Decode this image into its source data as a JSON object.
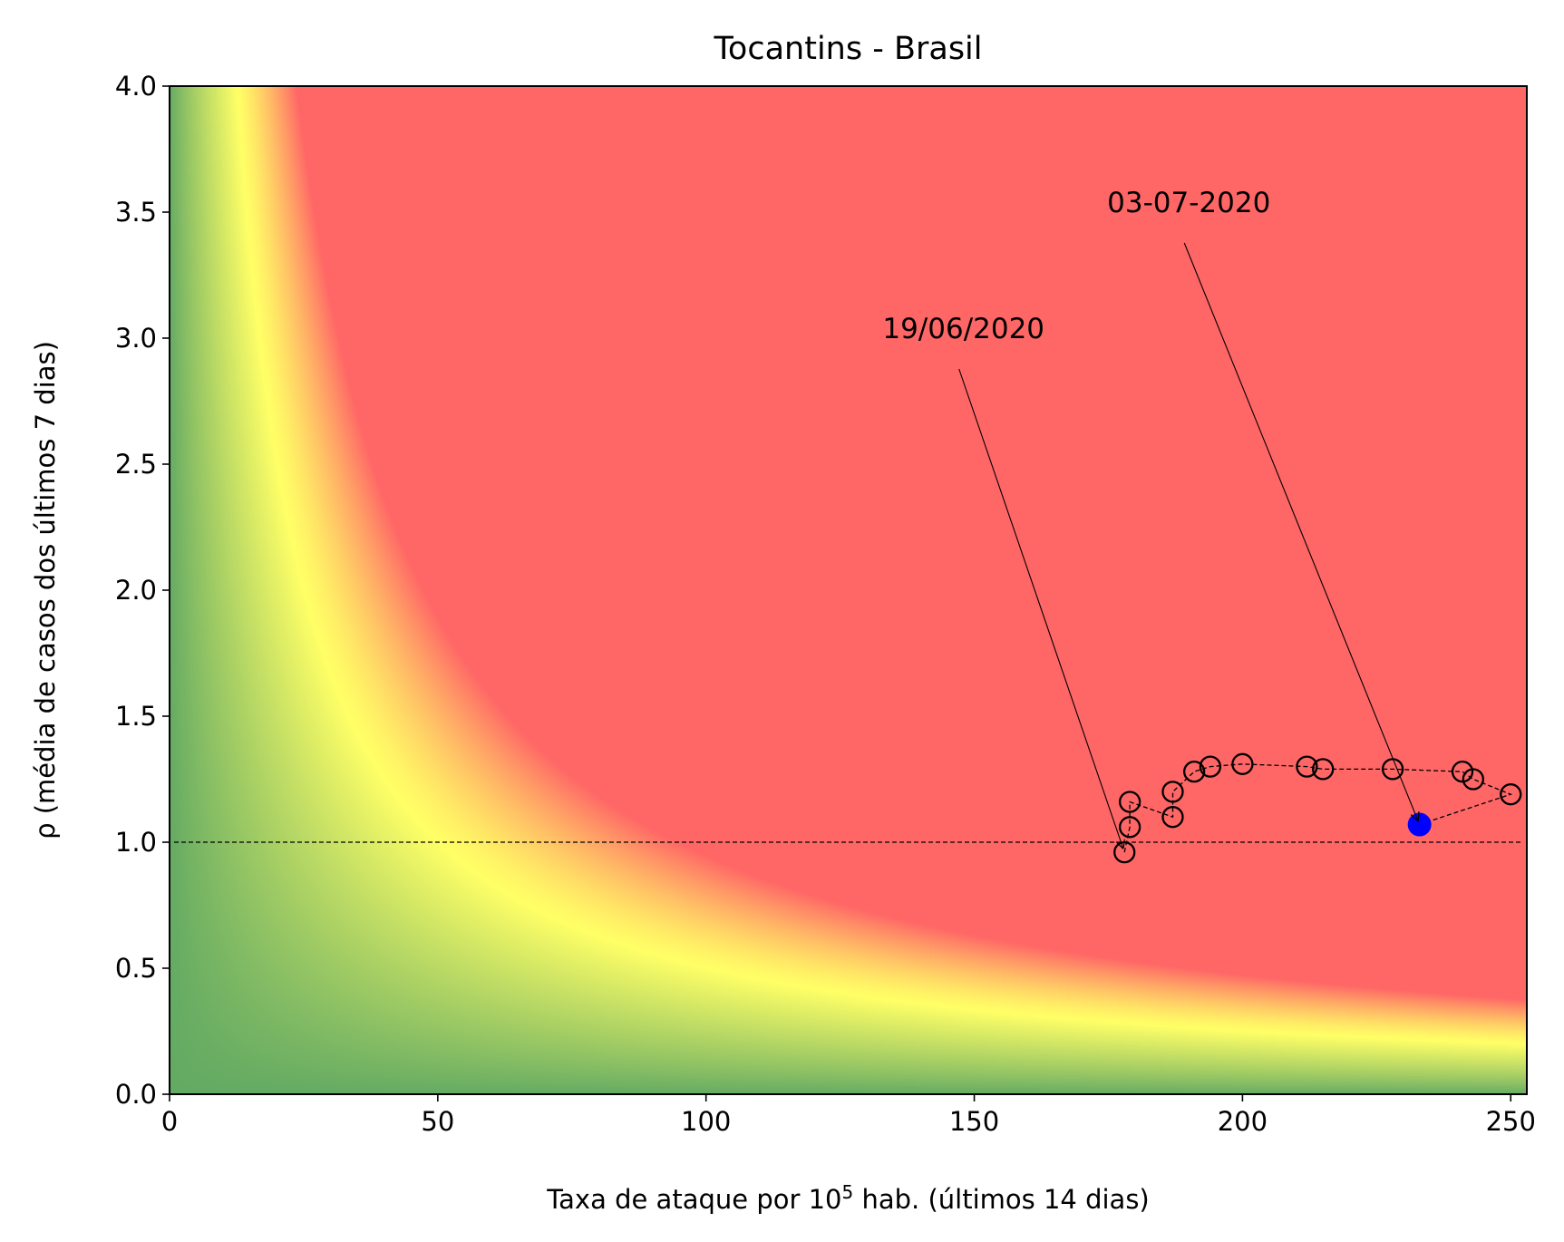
{
  "chart_data": {
    "type": "scatter",
    "title": "Tocantins - Brasil",
    "xlabel": {
      "prefix": "Taxa de ataque por 10",
      "superscript": "5",
      "suffix": " hab. (últimos 14 dias)"
    },
    "ylabel": "ρ (média de casos dos últimos 7 dias)",
    "xlim": [
      0,
      253
    ],
    "ylim": [
      0,
      4.0
    ],
    "x_ticks": [
      0,
      50,
      100,
      150,
      200,
      250
    ],
    "x_tick_labels": [
      "0",
      "50",
      "100",
      "150",
      "200",
      "250"
    ],
    "y_ticks": [
      0.0,
      0.5,
      1.0,
      1.5,
      2.0,
      2.5,
      3.0,
      3.5,
      4.0
    ],
    "y_tick_labels": [
      "0.0",
      "0.5",
      "1.0",
      "1.5",
      "2.0",
      "2.5",
      "3.0",
      "3.5",
      "4.0"
    ],
    "grid": false,
    "background": {
      "type": "risk-heatmap",
      "colors": {
        "low": "#63aa63",
        "mid": "#ffff66",
        "high": "#ff6666"
      }
    },
    "reference_line": {
      "y": 1.0,
      "style": "dashed",
      "color": "#000000"
    },
    "series": [
      {
        "marker": "open-circle",
        "line": "dashed",
        "color": "#000000",
        "x": [
          178,
          179,
          179,
          187,
          187,
          191,
          194,
          200,
          212,
          215,
          228,
          241,
          243,
          250
        ],
        "y": [
          0.96,
          1.06,
          1.16,
          1.1,
          1.2,
          1.28,
          1.3,
          1.31,
          1.3,
          1.29,
          1.29,
          1.28,
          1.25,
          1.19
        ]
      }
    ],
    "highlight_point": {
      "x": 233,
      "y": 1.07,
      "color": "#0000ff"
    },
    "annotations": [
      {
        "text": "19/06/2020",
        "text_x": 148,
        "text_y": 3.0,
        "target_x": 178,
        "target_y": 0.96
      },
      {
        "text": "03-07-2020",
        "text_x": 190,
        "text_y": 3.5,
        "target_x": 233,
        "target_y": 1.07
      }
    ]
  }
}
